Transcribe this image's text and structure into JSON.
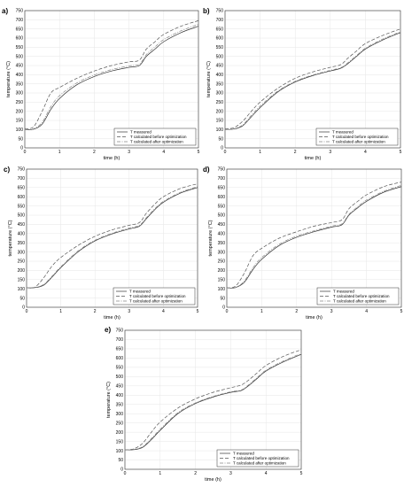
{
  "chart_data": [
    {
      "type": "line",
      "panel": "a)",
      "xlabel": "time (h)",
      "ylabel": "temperature (°C)",
      "xlim": [
        0,
        5
      ],
      "ylim": [
        0,
        750
      ],
      "xticks": [
        "0",
        "1",
        "2",
        "3",
        "4",
        "5"
      ],
      "yticks": [
        "0",
        "50",
        "100",
        "150",
        "200",
        "250",
        "300",
        "350",
        "400",
        "450",
        "500",
        "550",
        "600",
        "650",
        "700",
        "750"
      ],
      "grid": true,
      "legend_position": "bottom-right",
      "series": [
        {
          "name": "T measured",
          "style": "solid",
          "x": [
            0,
            0.25,
            0.5,
            0.75,
            1,
            1.5,
            2,
            2.5,
            3,
            3.3,
            3.5,
            3.75,
            4,
            4.5,
            5
          ],
          "y": [
            100,
            102,
            130,
            210,
            270,
            345,
            390,
            420,
            440,
            450,
            500,
            540,
            580,
            630,
            665
          ]
        },
        {
          "name": "T calculated before optimization",
          "style": "dashed",
          "x": [
            0,
            0.25,
            0.5,
            0.75,
            1,
            1.5,
            2,
            2.5,
            3,
            3.3,
            3.5,
            3.75,
            4,
            4.5,
            5
          ],
          "y": [
            105,
            115,
            200,
            300,
            330,
            380,
            420,
            450,
            470,
            480,
            540,
            580,
            620,
            665,
            695
          ]
        },
        {
          "name": "T calculated after optimization",
          "style": "dashdot",
          "x": [
            0,
            0.25,
            0.5,
            0.75,
            1,
            1.5,
            2,
            2.5,
            3,
            3.3,
            3.5,
            3.75,
            4,
            4.5,
            5
          ],
          "y": [
            100,
            104,
            140,
            225,
            285,
            355,
            398,
            428,
            448,
            458,
            510,
            552,
            592,
            640,
            675
          ]
        }
      ]
    },
    {
      "type": "line",
      "panel": "b)",
      "xlabel": "time (h)",
      "ylabel": "temperature (°C)",
      "xlim": [
        0,
        5
      ],
      "ylim": [
        0,
        750
      ],
      "xticks": [
        "0",
        "1",
        "2",
        "3",
        "4",
        "5"
      ],
      "yticks": [
        "0",
        "50",
        "100",
        "150",
        "200",
        "250",
        "300",
        "350",
        "400",
        "450",
        "500",
        "550",
        "600",
        "650",
        "700",
        "750"
      ],
      "grid": true,
      "legend_position": "bottom-right",
      "series": [
        {
          "name": "T measured",
          "style": "solid",
          "x": [
            0,
            0.25,
            0.5,
            0.75,
            1,
            1.5,
            2,
            2.5,
            3,
            3.3,
            3.5,
            3.75,
            4,
            4.5,
            5
          ],
          "y": [
            100,
            103,
            120,
            170,
            220,
            305,
            360,
            395,
            420,
            435,
            460,
            500,
            540,
            590,
            630
          ]
        },
        {
          "name": "T calculated before optimization",
          "style": "dashed",
          "x": [
            0,
            0.25,
            0.5,
            0.75,
            1,
            1.5,
            2,
            2.5,
            3,
            3.3,
            3.5,
            3.75,
            4,
            4.5,
            5
          ],
          "y": [
            105,
            110,
            145,
            200,
            250,
            325,
            380,
            415,
            440,
            455,
            490,
            530,
            570,
            615,
            650
          ]
        },
        {
          "name": "T calculated after optimization",
          "style": "dashdot",
          "x": [
            0,
            0.25,
            0.5,
            0.75,
            1,
            1.5,
            2,
            2.5,
            3,
            3.3,
            3.5,
            3.75,
            4,
            4.5,
            5
          ],
          "y": [
            100,
            104,
            125,
            178,
            228,
            310,
            364,
            398,
            424,
            438,
            465,
            505,
            545,
            595,
            635
          ]
        }
      ]
    },
    {
      "type": "line",
      "panel": "c)",
      "xlabel": "time (h)",
      "ylabel": "temperature (°C)",
      "xlim": [
        0,
        5
      ],
      "ylim": [
        0,
        750
      ],
      "xticks": [
        "0",
        "1",
        "2",
        "3",
        "4",
        "5"
      ],
      "yticks": [
        "0",
        "50",
        "100",
        "150",
        "200",
        "250",
        "300",
        "350",
        "400",
        "450",
        "500",
        "550",
        "600",
        "650",
        "700",
        "750"
      ],
      "grid": true,
      "legend_position": "bottom-right",
      "series": [
        {
          "name": "T measured",
          "style": "solid",
          "x": [
            0,
            0.25,
            0.5,
            0.75,
            1,
            1.5,
            2,
            2.5,
            3,
            3.3,
            3.5,
            3.75,
            4,
            4.5,
            5
          ],
          "y": [
            105,
            107,
            120,
            165,
            215,
            300,
            360,
            398,
            425,
            440,
            480,
            530,
            570,
            620,
            650
          ]
        },
        {
          "name": "T calculated before optimization",
          "style": "dashed",
          "x": [
            0,
            0.25,
            0.5,
            0.75,
            1,
            1.5,
            2,
            2.5,
            3,
            3.3,
            3.5,
            3.75,
            4,
            4.5,
            5
          ],
          "y": [
            105,
            110,
            160,
            225,
            270,
            335,
            385,
            420,
            445,
            460,
            510,
            560,
            600,
            645,
            670
          ]
        },
        {
          "name": "T calculated after optimization",
          "style": "dashdot",
          "x": [
            0,
            0.25,
            0.5,
            0.75,
            1,
            1.5,
            2,
            2.5,
            3,
            3.3,
            3.5,
            3.75,
            4,
            4.5,
            5
          ],
          "y": [
            105,
            108,
            124,
            170,
            220,
            305,
            364,
            402,
            430,
            445,
            486,
            535,
            575,
            624,
            655
          ]
        }
      ]
    },
    {
      "type": "line",
      "panel": "d)",
      "xlabel": "time (h)",
      "ylabel": "temperature (°C)",
      "xlim": [
        0,
        5
      ],
      "ylim": [
        0,
        750
      ],
      "xticks": [
        "0",
        "1",
        "2",
        "3",
        "4",
        "5"
      ],
      "yticks": [
        "0",
        "50",
        "100",
        "150",
        "200",
        "250",
        "300",
        "350",
        "400",
        "450",
        "500",
        "550",
        "600",
        "650",
        "700",
        "750"
      ],
      "grid": true,
      "legend_position": "bottom-right",
      "series": [
        {
          "name": "T measured",
          "style": "solid",
          "x": [
            0,
            0.25,
            0.5,
            0.75,
            1,
            1.5,
            2,
            2.5,
            3,
            3.3,
            3.5,
            3.75,
            4,
            4.5,
            5
          ],
          "y": [
            105,
            107,
            135,
            205,
            260,
            335,
            380,
            410,
            435,
            448,
            500,
            540,
            575,
            625,
            655
          ]
        },
        {
          "name": "T calculated before optimization",
          "style": "dashed",
          "x": [
            0,
            0.25,
            0.5,
            0.75,
            1,
            1.5,
            2,
            2.5,
            3,
            3.3,
            3.5,
            3.75,
            4,
            4.5,
            5
          ],
          "y": [
            105,
            115,
            185,
            280,
            320,
            375,
            410,
            440,
            460,
            475,
            535,
            575,
            610,
            655,
            680
          ]
        },
        {
          "name": "T calculated after optimization",
          "style": "dashdot",
          "x": [
            0,
            0.25,
            0.5,
            0.75,
            1,
            1.5,
            2,
            2.5,
            3,
            3.3,
            3.5,
            3.75,
            4,
            4.5,
            5
          ],
          "y": [
            105,
            108,
            142,
            215,
            270,
            342,
            386,
            415,
            440,
            453,
            505,
            546,
            582,
            630,
            662
          ]
        }
      ]
    },
    {
      "type": "line",
      "panel": "e)",
      "xlabel": "time (h)",
      "ylabel": "temperature (°C)",
      "xlim": [
        0,
        5
      ],
      "ylim": [
        0,
        750
      ],
      "xticks": [
        "0",
        "1",
        "2",
        "3",
        "4",
        "5"
      ],
      "yticks": [
        "0",
        "50",
        "100",
        "150",
        "200",
        "250",
        "300",
        "350",
        "400",
        "450",
        "500",
        "550",
        "600",
        "650",
        "700",
        "750"
      ],
      "grid": true,
      "legend_position": "bottom-right",
      "series": [
        {
          "name": "T measured",
          "style": "solid",
          "x": [
            0,
            0.25,
            0.5,
            0.75,
            1,
            1.5,
            2,
            2.5,
            3,
            3.3,
            3.5,
            3.75,
            4,
            4.5,
            5
          ],
          "y": [
            105,
            106,
            118,
            160,
            210,
            300,
            355,
            390,
            415,
            425,
            450,
            490,
            530,
            580,
            620
          ]
        },
        {
          "name": "T calculated before optimization",
          "style": "dashed",
          "x": [
            0,
            0.25,
            0.5,
            0.75,
            1,
            1.5,
            2,
            2.5,
            3,
            3.3,
            3.5,
            3.75,
            4,
            4.5,
            5
          ],
          "y": [
            105,
            110,
            140,
            200,
            255,
            330,
            380,
            415,
            440,
            455,
            480,
            520,
            560,
            610,
            645
          ]
        },
        {
          "name": "T calculated after optimization",
          "style": "dashdot",
          "x": [
            0,
            0.25,
            0.5,
            0.75,
            1,
            1.5,
            2,
            2.5,
            3,
            3.3,
            3.5,
            3.75,
            4,
            4.5,
            5
          ],
          "y": [
            105,
            107,
            122,
            166,
            216,
            305,
            358,
            393,
            418,
            428,
            455,
            495,
            535,
            585,
            625
          ]
        }
      ]
    }
  ]
}
